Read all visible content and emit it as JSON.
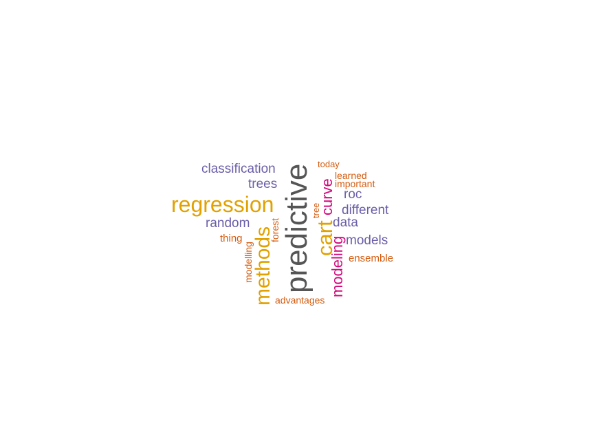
{
  "colors": {
    "gray": "#555555",
    "gold": "#E1A100",
    "purple": "#6A5EA8",
    "magenta": "#D4087E",
    "orange": "#D45B0E"
  },
  "words": [
    {
      "id": "predictive",
      "text": "predictive",
      "color": "#555555"
    },
    {
      "id": "regression",
      "text": "regression",
      "color": "#E1A100"
    },
    {
      "id": "methods",
      "text": "methods",
      "color": "#E1A100"
    },
    {
      "id": "cart",
      "text": "cart",
      "color": "#E1A100"
    },
    {
      "id": "curve",
      "text": "curve",
      "color": "#D4087E"
    },
    {
      "id": "modeling",
      "text": "modeling",
      "color": "#D4087E"
    },
    {
      "id": "classification",
      "text": "classification",
      "color": "#6A5EA8"
    },
    {
      "id": "trees",
      "text": "trees",
      "color": "#6A5EA8"
    },
    {
      "id": "random",
      "text": "random",
      "color": "#6A5EA8"
    },
    {
      "id": "roc",
      "text": "roc",
      "color": "#6A5EA8"
    },
    {
      "id": "different",
      "text": "different",
      "color": "#6A5EA8"
    },
    {
      "id": "data",
      "text": "data",
      "color": "#6A5EA8"
    },
    {
      "id": "models",
      "text": "models",
      "color": "#6A5EA8"
    },
    {
      "id": "thing",
      "text": "thing",
      "color": "#D45B0E"
    },
    {
      "id": "modelling",
      "text": "modelling",
      "color": "#D45B0E"
    },
    {
      "id": "forest",
      "text": "forest",
      "color": "#D45B0E"
    },
    {
      "id": "tree",
      "text": "tree",
      "color": "#D45B0E"
    },
    {
      "id": "today",
      "text": "today",
      "color": "#D45B0E"
    },
    {
      "id": "learned",
      "text": "learned",
      "color": "#D45B0E"
    },
    {
      "id": "important",
      "text": "important",
      "color": "#D45B0E"
    },
    {
      "id": "ensemble",
      "text": "ensemble",
      "color": "#D45B0E"
    },
    {
      "id": "advantages",
      "text": "advantages",
      "color": "#D45B0E"
    }
  ]
}
